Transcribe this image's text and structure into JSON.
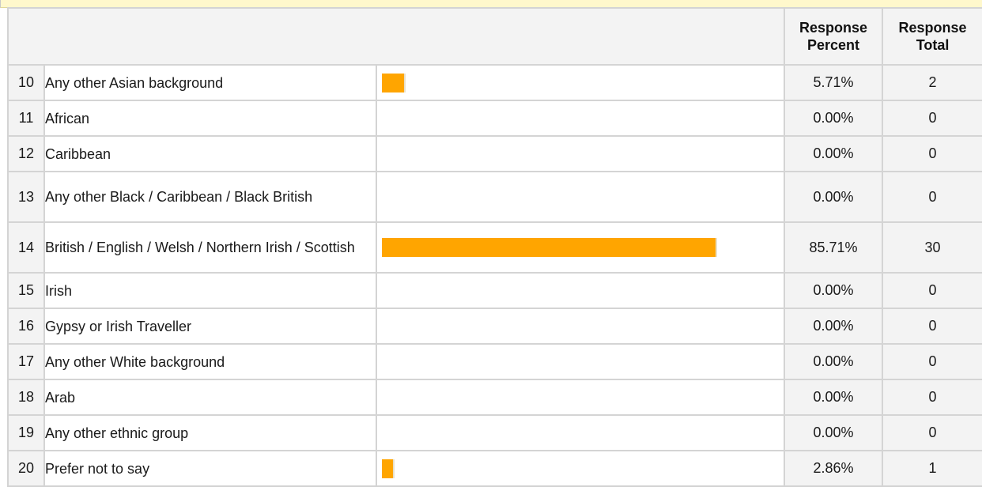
{
  "header": {
    "percent_label": "Response Percent",
    "total_label": "Response Total"
  },
  "colors": {
    "bar": "#ffa500",
    "band": "#fff8cc"
  },
  "rows": [
    {
      "num": "10",
      "label": "Any other Asian background",
      "percent": "5.71%",
      "total": "2",
      "fraction": 0.0571
    },
    {
      "num": "11",
      "label": "African",
      "percent": "0.00%",
      "total": "0",
      "fraction": 0
    },
    {
      "num": "12",
      "label": "Caribbean",
      "percent": "0.00%",
      "total": "0",
      "fraction": 0
    },
    {
      "num": "13",
      "label": "Any other Black / Caribbean / Black British",
      "percent": "0.00%",
      "total": "0",
      "fraction": 0
    },
    {
      "num": "14",
      "label": "British / English / Welsh / Northern Irish / Scottish",
      "percent": "85.71%",
      "total": "30",
      "fraction": 0.8571
    },
    {
      "num": "15",
      "label": "Irish",
      "percent": "0.00%",
      "total": "0",
      "fraction": 0
    },
    {
      "num": "16",
      "label": "Gypsy or Irish Traveller",
      "percent": "0.00%",
      "total": "0",
      "fraction": 0
    },
    {
      "num": "17",
      "label": "Any other White background",
      "percent": "0.00%",
      "total": "0",
      "fraction": 0
    },
    {
      "num": "18",
      "label": "Arab",
      "percent": "0.00%",
      "total": "0",
      "fraction": 0
    },
    {
      "num": "19",
      "label": "Any other ethnic group",
      "percent": "0.00%",
      "total": "0",
      "fraction": 0
    },
    {
      "num": "20",
      "label": "Prefer not to say",
      "percent": "2.86%",
      "total": "1",
      "fraction": 0.0286
    }
  ]
}
